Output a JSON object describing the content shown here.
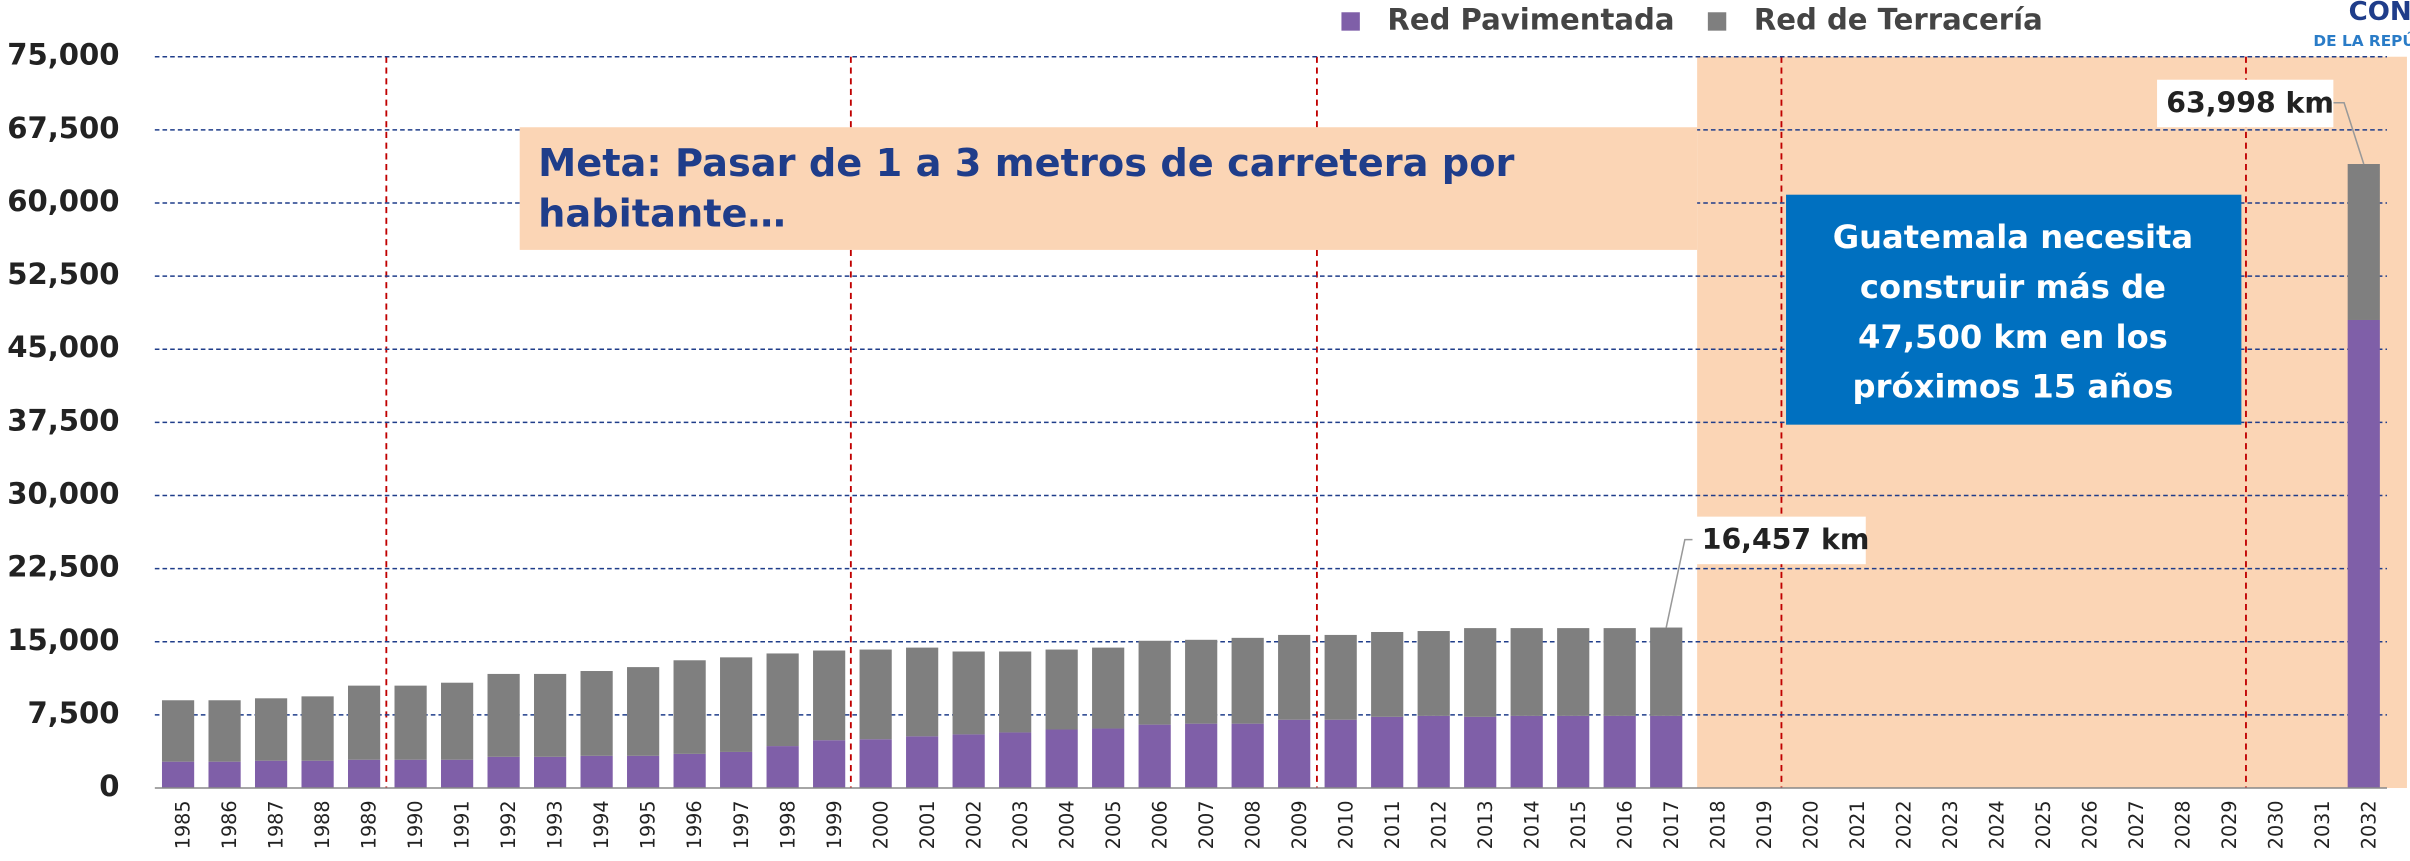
{
  "chart_data": {
    "type": "stacked_bar",
    "categories": [
      "1985",
      "1986",
      "1987",
      "1988",
      "1989",
      "1990",
      "1991",
      "1992",
      "1993",
      "1994",
      "1995",
      "1996",
      "1997",
      "1998",
      "1999",
      "2000",
      "2001",
      "2002",
      "2003",
      "2004",
      "2005",
      "2006",
      "2007",
      "2008",
      "2009",
      "2010",
      "2011",
      "2012",
      "2013",
      "2014",
      "2015",
      "2016",
      "2017",
      "2018",
      "2019",
      "2020",
      "2021",
      "2022",
      "2023",
      "2024",
      "2025",
      "2026",
      "2027",
      "2028",
      "2029",
      "2030",
      "2031",
      "2032"
    ],
    "series": [
      {
        "name": "Red Pavimentada",
        "color": "#7f5fa8",
        "values": [
          2700,
          2700,
          2800,
          2800,
          2900,
          2900,
          2900,
          3200,
          3200,
          3300,
          3300,
          3500,
          3700,
          4300,
          4900,
          5000,
          5300,
          5500,
          5700,
          6000,
          6100,
          6500,
          6600,
          6600,
          7000,
          7000,
          7300,
          7400,
          7300,
          7400,
          7400,
          7400,
          7400,
          null,
          null,
          null,
          null,
          null,
          null,
          null,
          null,
          null,
          null,
          null,
          null,
          null,
          null,
          48000
        ]
      },
      {
        "name": "Red de Terracería",
        "color": "#7f7f7f",
        "values": [
          6300,
          6300,
          6400,
          6600,
          7600,
          7600,
          7900,
          8500,
          8500,
          8700,
          9100,
          9600,
          9700,
          9500,
          9200,
          9200,
          9100,
          8500,
          8300,
          8200,
          8300,
          8600,
          8600,
          8800,
          8700,
          8700,
          8700,
          8700,
          9100,
          9000,
          9000,
          9000,
          9057,
          null,
          null,
          null,
          null,
          null,
          null,
          null,
          null,
          null,
          null,
          null,
          null,
          null,
          null,
          15998
        ]
      }
    ],
    "ylim": [
      0,
      75000
    ],
    "yticks": [
      0,
      {
        "value": 7500,
        "label": "7,500"
      },
      {
        "value": 15000,
        "label": "15,000"
      },
      {
        "value": 22500,
        "label": "22,500"
      },
      {
        "value": 30000,
        "label": "30,000"
      },
      {
        "value": 37500,
        "label": "37,500"
      },
      {
        "value": 45000,
        "label": "45,000"
      },
      {
        "value": 52500,
        "label": "52,500"
      },
      {
        "value": 60000,
        "label": "60,000"
      },
      {
        "value": 67500,
        "label": "67,500"
      },
      {
        "value": 75000,
        "label": "75,000"
      }
    ],
    "grid": true,
    "legend": "top",
    "totals": [
      {
        "value": 16457,
        "label": "16,457 km"
      },
      {
        "value": 63998,
        "label": "63,998 km"
      }
    ],
    "annotations": [
      {
        "lines": [
          "Meta: Pasar de 1 a 3 metros de carretera por",
          "habitante…"
        ]
      },
      {
        "lines": [
          "Guatemala necesita",
          "construir más de",
          "47,500 km en los",
          "próximos 15 años"
        ]
      }
    ],
    "logo": [
      "CONG",
      "DE LA REPÚ"
    ]
  }
}
